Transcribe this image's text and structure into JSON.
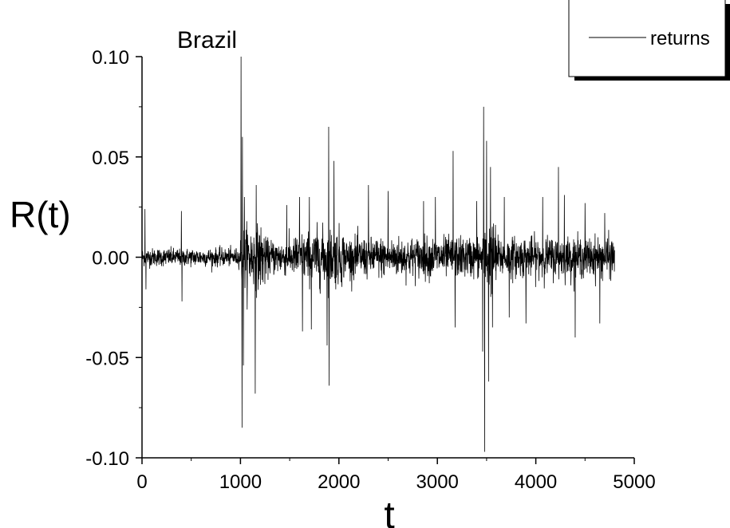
{
  "chart_data": {
    "type": "line",
    "title": "Brazil",
    "xlabel": "t",
    "ylabel": "R(t)",
    "xlim": [
      0,
      5000
    ],
    "ylim": [
      -0.1,
      0.1
    ],
    "x_ticks": [
      0,
      1000,
      2000,
      3000,
      4000,
      5000
    ],
    "y_ticks": [
      -0.1,
      -0.05,
      0.0,
      0.05,
      0.1
    ],
    "x_tick_labels": [
      "0",
      "1000",
      "2000",
      "3000",
      "4000",
      "5000"
    ],
    "y_tick_labels": [
      "-0.10",
      "-0.05",
      "0.00",
      "0.05",
      "0.10"
    ],
    "legend_position": "top-right",
    "grid": false,
    "color": "#000000",
    "series": [
      {
        "name": "returns",
        "x_start": 0,
        "x_end": 4800,
        "amplitude_segments": [
          {
            "x_from": 0,
            "x_to": 1000,
            "typical": 0.004
          },
          {
            "x_from": 1000,
            "x_to": 1250,
            "typical": 0.014
          },
          {
            "x_from": 1250,
            "x_to": 1550,
            "typical": 0.008
          },
          {
            "x_from": 1550,
            "x_to": 1750,
            "typical": 0.011
          },
          {
            "x_from": 1750,
            "x_to": 2050,
            "typical": 0.013
          },
          {
            "x_from": 2050,
            "x_to": 3450,
            "typical": 0.009
          },
          {
            "x_from": 3450,
            "x_to": 3600,
            "typical": 0.016
          },
          {
            "x_from": 3600,
            "x_to": 4800,
            "typical": 0.009
          }
        ],
        "spikes": [
          {
            "x": 30,
            "y": 0.024
          },
          {
            "x": 40,
            "y": -0.016
          },
          {
            "x": 400,
            "y": 0.023
          },
          {
            "x": 405,
            "y": -0.022
          },
          {
            "x": 1005,
            "y": 0.1
          },
          {
            "x": 1015,
            "y": -0.085
          },
          {
            "x": 1020,
            "y": 0.06
          },
          {
            "x": 1030,
            "y": -0.054
          },
          {
            "x": 1040,
            "y": 0.03
          },
          {
            "x": 1150,
            "y": -0.068
          },
          {
            "x": 1160,
            "y": 0.036
          },
          {
            "x": 1470,
            "y": 0.026
          },
          {
            "x": 1600,
            "y": 0.03
          },
          {
            "x": 1630,
            "y": -0.037
          },
          {
            "x": 1700,
            "y": 0.03
          },
          {
            "x": 1720,
            "y": -0.036
          },
          {
            "x": 1880,
            "y": -0.044
          },
          {
            "x": 1895,
            "y": 0.065
          },
          {
            "x": 1900,
            "y": -0.064
          },
          {
            "x": 1950,
            "y": 0.048
          },
          {
            "x": 2300,
            "y": 0.036
          },
          {
            "x": 2500,
            "y": 0.033
          },
          {
            "x": 2860,
            "y": 0.028
          },
          {
            "x": 2980,
            "y": 0.03
          },
          {
            "x": 3160,
            "y": 0.053
          },
          {
            "x": 3180,
            "y": -0.035
          },
          {
            "x": 3400,
            "y": 0.028
          },
          {
            "x": 3460,
            "y": -0.047
          },
          {
            "x": 3470,
            "y": 0.075
          },
          {
            "x": 3480,
            "y": -0.097
          },
          {
            "x": 3500,
            "y": 0.058
          },
          {
            "x": 3520,
            "y": -0.062
          },
          {
            "x": 3540,
            "y": 0.045
          },
          {
            "x": 3560,
            "y": -0.035
          },
          {
            "x": 3680,
            "y": 0.03
          },
          {
            "x": 3730,
            "y": -0.03
          },
          {
            "x": 3900,
            "y": -0.033
          },
          {
            "x": 4070,
            "y": 0.03
          },
          {
            "x": 4230,
            "y": 0.045
          },
          {
            "x": 4290,
            "y": 0.031
          },
          {
            "x": 4400,
            "y": -0.04
          },
          {
            "x": 4500,
            "y": 0.027
          },
          {
            "x": 4650,
            "y": -0.033
          },
          {
            "x": 4700,
            "y": 0.022
          }
        ]
      }
    ]
  }
}
